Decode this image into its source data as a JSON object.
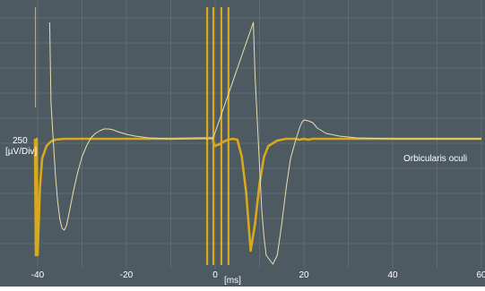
{
  "chart_data": {
    "type": "line",
    "x_ticks": [
      "-40",
      "-20",
      "0",
      "20",
      "40",
      "60"
    ],
    "xlim": [
      -40,
      60
    ],
    "xlabel": "[ms]",
    "ylabel": "250",
    "ylabel_unit": "[µV/Div]",
    "trace_label": "Orbicularis oculi",
    "grid": true,
    "colors": {
      "background": "#4d5a62",
      "grid": "#5e6b73",
      "primary_trace": "#d8a91c",
      "secondary_trace": "#e8dfae",
      "text": "#ffffff"
    },
    "series": [
      {
        "style": "thick",
        "points": [
          [
            -40.6,
            0
          ],
          [
            -40.4,
            -130
          ],
          [
            -40.2,
            0
          ],
          [
            -40.0,
            -130
          ],
          [
            -39.5,
            -55
          ],
          [
            -39,
            -22
          ],
          [
            -38,
            -8
          ],
          [
            -37,
            -3
          ],
          [
            -36,
            -1
          ],
          [
            -34,
            0
          ],
          [
            -10,
            0
          ],
          [
            -0.5,
            1
          ],
          [
            -0.4,
            -4
          ],
          [
            0,
            -8
          ],
          [
            1,
            -6
          ],
          [
            2,
            -3
          ],
          [
            3,
            -1
          ],
          [
            4,
            0
          ],
          [
            5,
            -1
          ],
          [
            6,
            -20
          ],
          [
            7,
            -60
          ],
          [
            8,
            -125
          ],
          [
            9,
            -95
          ],
          [
            10,
            -50
          ],
          [
            11,
            -20
          ],
          [
            12,
            -8
          ],
          [
            14,
            -2
          ],
          [
            16,
            0
          ],
          [
            18,
            0
          ],
          [
            19,
            -1
          ],
          [
            20,
            0
          ],
          [
            21,
            -1
          ],
          [
            22,
            0
          ],
          [
            40,
            0
          ],
          [
            60,
            0
          ]
        ]
      },
      {
        "style": "thin",
        "points": [
          [
            -37.3,
            130
          ],
          [
            -37,
            40
          ],
          [
            -36.5,
            0
          ],
          [
            -36,
            -40
          ],
          [
            -35.5,
            -70
          ],
          [
            -35,
            -90
          ],
          [
            -34.5,
            -100
          ],
          [
            -34,
            -102
          ],
          [
            -33.5,
            -97
          ],
          [
            -33,
            -85
          ],
          [
            -32,
            -60
          ],
          [
            -31,
            -38
          ],
          [
            -30,
            -20
          ],
          [
            -29,
            -8
          ],
          [
            -28,
            1
          ],
          [
            -27,
            6
          ],
          [
            -26,
            9
          ],
          [
            -25,
            11
          ],
          [
            -24,
            11
          ],
          [
            -23,
            10
          ],
          [
            -22,
            8
          ],
          [
            -20,
            5
          ],
          [
            -18,
            3
          ],
          [
            -15,
            1
          ],
          [
            -10,
            0
          ],
          [
            -0.5,
            0
          ],
          [
            8.6,
            130
          ],
          [
            9,
            70
          ],
          [
            9.5,
            20
          ],
          [
            10,
            -30
          ],
          [
            10.5,
            -80
          ],
          [
            11,
            -110
          ],
          [
            11.5,
            -130
          ],
          [
            13,
            -140
          ],
          [
            14,
            -130
          ],
          [
            15,
            -95
          ],
          [
            16,
            -55
          ],
          [
            17,
            -22
          ],
          [
            18,
            -4
          ],
          [
            19,
            12
          ],
          [
            19.5,
            18
          ],
          [
            20,
            21
          ],
          [
            21,
            20
          ],
          [
            22,
            18
          ],
          [
            23,
            12
          ],
          [
            25,
            6
          ],
          [
            28,
            3
          ],
          [
            32,
            1
          ],
          [
            40,
            0
          ],
          [
            60,
            0
          ]
        ]
      }
    ],
    "stimulus_marks": [
      -1.8,
      -0.4,
      1.4,
      3.0
    ]
  }
}
